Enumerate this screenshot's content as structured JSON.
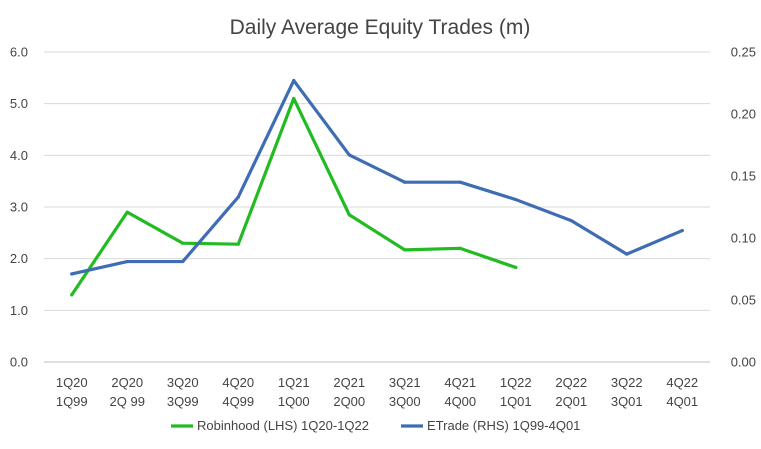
{
  "chart_data": {
    "type": "line",
    "title": "Daily Average Equity Trades (m)",
    "categories_line1": [
      "1Q20",
      "2Q20",
      "3Q20",
      "4Q20",
      "1Q21",
      "2Q21",
      "3Q21",
      "4Q21",
      "1Q22",
      "2Q22",
      "3Q22",
      "4Q22"
    ],
    "categories_line2": [
      "1Q99",
      "2Q 99",
      "3Q99",
      "4Q99",
      "1Q00",
      "2Q00",
      "3Q00",
      "4Q00",
      "1Q01",
      "2Q01",
      "3Q01",
      "4Q01"
    ],
    "y_left": {
      "ticks": [
        "0.0",
        "1.0",
        "2.0",
        "3.0",
        "4.0",
        "5.0",
        "6.0"
      ],
      "ylim": [
        0,
        6
      ]
    },
    "y_right": {
      "ticks": [
        "0.00",
        "0.05",
        "0.10",
        "0.15",
        "0.20",
        "0.25"
      ],
      "ylim": [
        0,
        0.25
      ]
    },
    "grid": "horizontal",
    "legend_position": "bottom",
    "series": [
      {
        "name": "Robinhood (LHS) 1Q20-1Q22",
        "axis": "left",
        "color": "#22bb22",
        "values": [
          1.3,
          2.9,
          2.3,
          2.28,
          5.1,
          2.85,
          2.17,
          2.2,
          1.83
        ]
      },
      {
        "name": "ETrade (RHS) 1Q99-4Q01",
        "axis": "right",
        "color": "#3e6db3",
        "values": [
          0.071,
          0.081,
          0.081,
          0.133,
          0.227,
          0.167,
          0.145,
          0.145,
          0.131,
          0.114,
          0.087,
          0.106
        ]
      }
    ]
  }
}
